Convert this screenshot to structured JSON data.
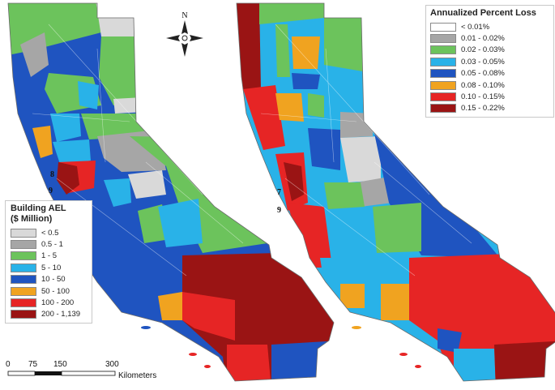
{
  "left_map": {
    "legend": {
      "title_line1": "Building AEL",
      "title_line2": "($ Million)",
      "classes": [
        {
          "label": "< 0.5",
          "color": "#d9d9d9"
        },
        {
          "label": "0.5 - 1",
          "color": "#a6a6a6"
        },
        {
          "label": "1 - 5",
          "color": "#6cc35c"
        },
        {
          "label": "5 - 10",
          "color": "#29b2e8"
        },
        {
          "label": "10 - 50",
          "color": "#1f54c0"
        },
        {
          "label": "50 - 100",
          "color": "#f0a320"
        },
        {
          "label": "100 - 200",
          "color": "#e62525"
        },
        {
          "label": "200 - 1,139",
          "color": "#9a1414"
        }
      ]
    },
    "region_labels": [
      "8",
      "9"
    ]
  },
  "right_map": {
    "legend": {
      "title": "Annualized Percent Loss",
      "classes": [
        {
          "label": "< 0.01%",
          "color": "#ffffff"
        },
        {
          "label": "0.01 - 0.02%",
          "color": "#a6a6a6"
        },
        {
          "label": "0.02 - 0.03%",
          "color": "#6cc35c"
        },
        {
          "label": "0.03 - 0.05%",
          "color": "#29b2e8"
        },
        {
          "label": "0.05 - 0.08%",
          "color": "#1f54c0"
        },
        {
          "label": "0.08 - 0.10%",
          "color": "#f0a320"
        },
        {
          "label": "0.10 - 0.15%",
          "color": "#e62525"
        },
        {
          "label": "0.15 - 0.22%",
          "color": "#9a1414"
        }
      ]
    },
    "region_labels": [
      "7",
      "9"
    ]
  },
  "north_arrow": {
    "label": "N"
  },
  "scale_bar": {
    "ticks": [
      "0",
      "75",
      "150",
      "300"
    ],
    "unit": "Kilometers"
  }
}
